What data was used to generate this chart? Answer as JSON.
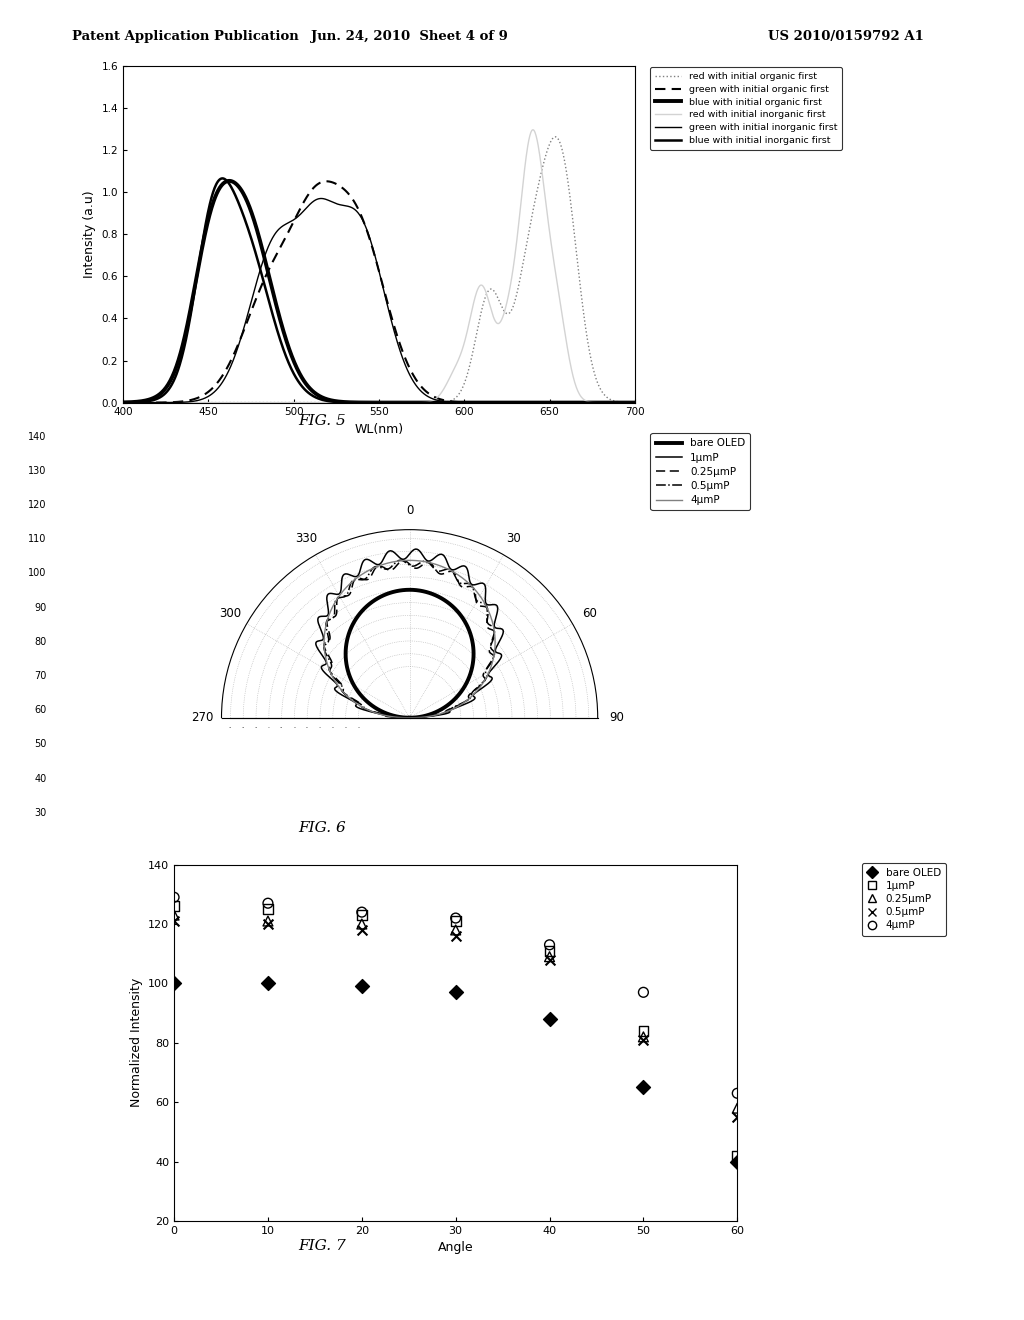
{
  "header_left": "Patent Application Publication",
  "header_mid": "Jun. 24, 2010  Sheet 4 of 9",
  "header_right": "US 2010/0159792 A1",
  "fig5_xlabel": "WL(nm)",
  "fig5_ylabel": "Intensity (a.u)",
  "fig5_xlim": [
    400,
    700
  ],
  "fig5_ylim": [
    0.0,
    1.6
  ],
  "fig5_yticks": [
    0.0,
    0.2,
    0.4,
    0.6,
    0.8,
    1.0,
    1.2,
    1.4,
    1.6
  ],
  "fig5_xticks": [
    400,
    450,
    500,
    550,
    600,
    650,
    700
  ],
  "fig5_caption": "FIG. 5",
  "fig6_caption": "FIG. 6",
  "fig7_caption": "FIG. 7",
  "fig7_xlabel": "Angle",
  "fig7_ylabel": "Normalized Intensity",
  "fig7_xlim": [
    0,
    60
  ],
  "fig7_ylim": [
    20,
    140
  ],
  "fig7_yticks": [
    20,
    40,
    60,
    80,
    100,
    120,
    140
  ],
  "fig7_xticks": [
    0,
    10,
    20,
    30,
    40,
    50,
    60
  ],
  "polar_rmax": 140,
  "polar_rmin": 30,
  "left_yticks": [
    30,
    40,
    50,
    60,
    70,
    80,
    90,
    100,
    110,
    120,
    130,
    140
  ]
}
